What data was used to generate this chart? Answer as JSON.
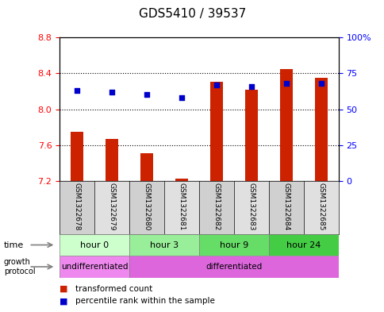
{
  "title": "GDS5410 / 39537",
  "samples": [
    "GSM1322678",
    "GSM1322679",
    "GSM1322680",
    "GSM1322681",
    "GSM1322682",
    "GSM1322683",
    "GSM1322684",
    "GSM1322685"
  ],
  "transformed_count": [
    7.75,
    7.67,
    7.51,
    7.23,
    8.31,
    8.22,
    8.45,
    8.35
  ],
  "percentile_rank": [
    63,
    62,
    60,
    58,
    67,
    66,
    68,
    68
  ],
  "bar_bottom": 7.2,
  "ylim_left": [
    7.2,
    8.8
  ],
  "ylim_right": [
    0,
    100
  ],
  "yticks_left": [
    7.2,
    7.6,
    8.0,
    8.4,
    8.8
  ],
  "yticks_right": [
    0,
    25,
    50,
    75,
    100
  ],
  "ytick_labels_right": [
    "0",
    "25",
    "50",
    "75",
    "100%"
  ],
  "bar_color": "#cc2200",
  "dot_color": "#0000cc",
  "col_colors": [
    "#d0d0d0",
    "#e0e0e0"
  ],
  "time_groups": [
    {
      "label": "hour 0",
      "start": 0,
      "end": 2,
      "color": "#ccffcc"
    },
    {
      "label": "hour 3",
      "start": 2,
      "end": 4,
      "color": "#99ee99"
    },
    {
      "label": "hour 9",
      "start": 4,
      "end": 6,
      "color": "#66dd66"
    },
    {
      "label": "hour 24",
      "start": 6,
      "end": 8,
      "color": "#44cc44"
    }
  ],
  "growth_groups": [
    {
      "label": "undifferentiated",
      "start": 0,
      "end": 2,
      "color": "#ee88ee"
    },
    {
      "label": "differentiated",
      "start": 2,
      "end": 8,
      "color": "#dd66dd"
    }
  ],
  "legend_items": [
    {
      "label": "transformed count",
      "color": "#cc2200"
    },
    {
      "label": "percentile rank within the sample",
      "color": "#0000cc"
    }
  ],
  "grid_yticks": [
    7.6,
    8.0,
    8.4
  ],
  "background_color": "white"
}
